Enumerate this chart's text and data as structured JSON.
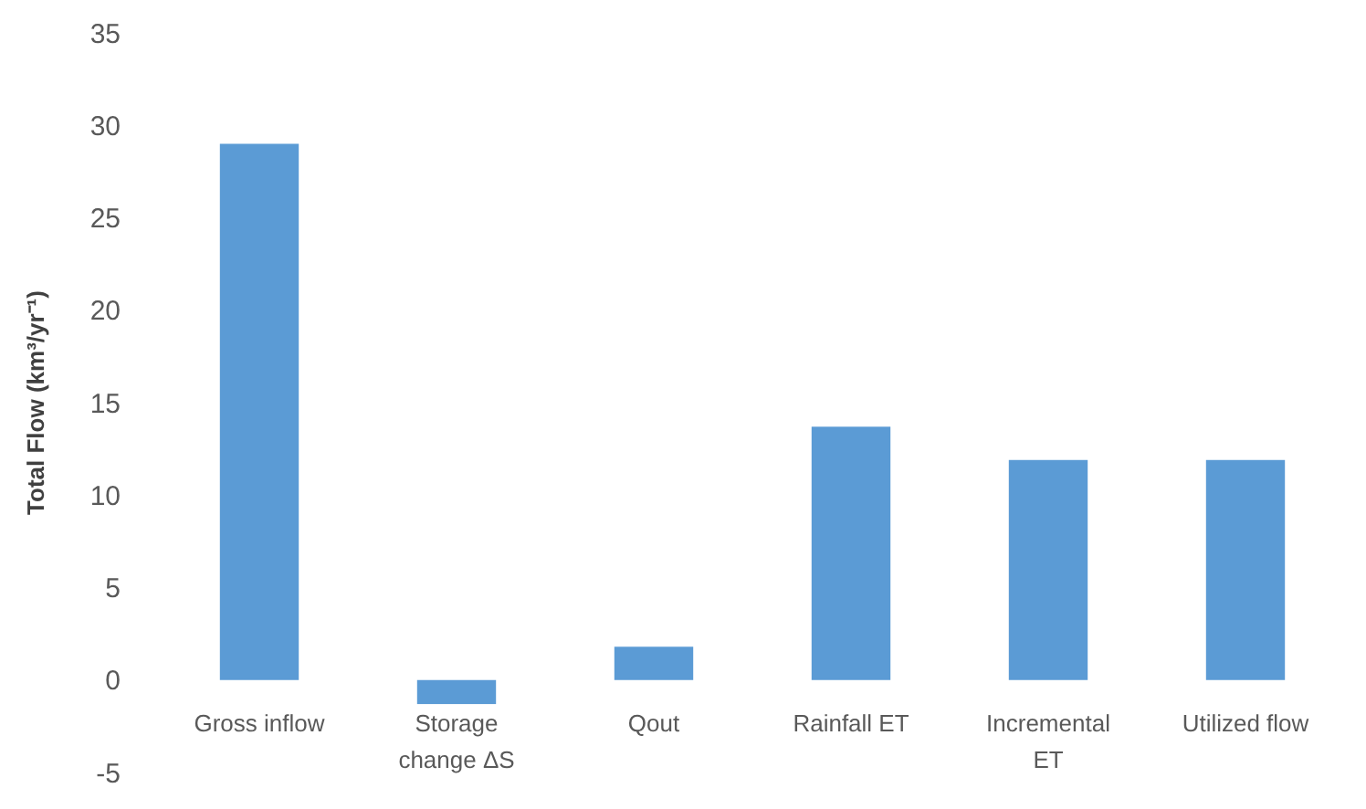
{
  "chart_data": {
    "type": "bar",
    "ylabel": "Total Flow (km³/yr⁻¹)",
    "categories": [
      "Gross inflow",
      "Storage change ΔS",
      "Qout",
      "Rainfall ET",
      "Incremental ET",
      "Utilized flow"
    ],
    "values": [
      29.0,
      -1.3,
      1.8,
      13.7,
      11.9,
      11.9
    ],
    "color": "#5b9bd5",
    "ylim": [
      -5,
      35
    ],
    "yticks": [
      -5,
      0,
      5,
      10,
      15,
      20,
      25,
      30,
      35
    ],
    "grid": false
  }
}
